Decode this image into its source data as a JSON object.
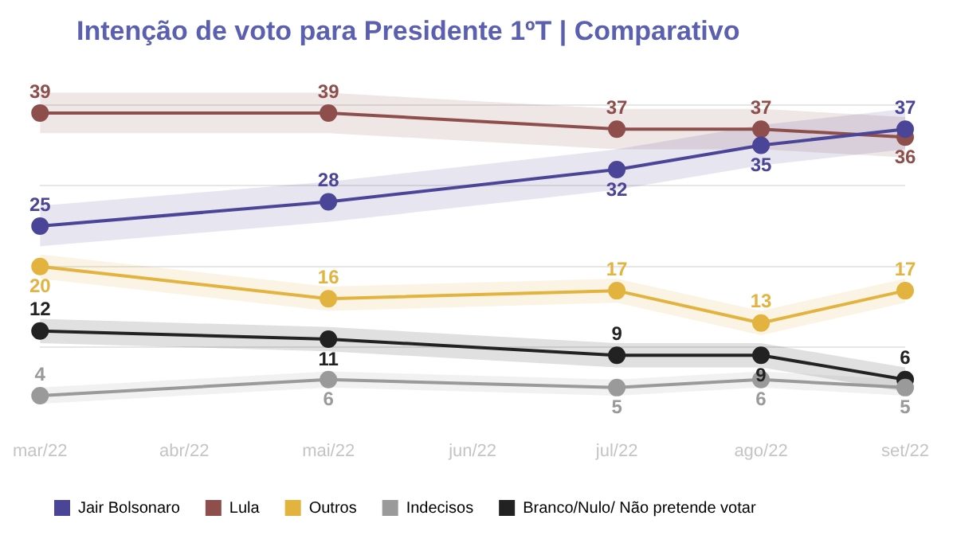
{
  "chart_data": {
    "type": "line",
    "title": "Intenção de voto para Presidente 1ºT | Comparativo",
    "categories": [
      "mar/22",
      "abr/22",
      "mai/22",
      "jun/22",
      "jul/22",
      "ago/22",
      "set/22"
    ],
    "series": [
      {
        "name": "Jair Bolsonaro",
        "color": "#4b4597",
        "values": [
          25,
          null,
          28,
          null,
          32,
          35,
          37
        ],
        "lower": [
          22.5,
          null,
          25.5,
          null,
          29.5,
          32.5,
          34.5
        ],
        "upper": [
          27.5,
          null,
          30.5,
          null,
          34.5,
          37.5,
          39.5
        ]
      },
      {
        "name": "Lula",
        "color": "#8e4f4c",
        "values": [
          39,
          null,
          39,
          null,
          37,
          37,
          36
        ],
        "lower": [
          36.5,
          null,
          36.5,
          null,
          34.5,
          34.5,
          33.5
        ],
        "upper": [
          41.5,
          null,
          41.5,
          null,
          39.5,
          39.5,
          38.5
        ]
      },
      {
        "name": "Outros",
        "color": "#e3b33f",
        "values": [
          20,
          null,
          16,
          null,
          17,
          13,
          17
        ],
        "lower": [
          18.5,
          null,
          14.5,
          null,
          15.5,
          11.5,
          15.5
        ],
        "upper": [
          21.5,
          null,
          17.5,
          null,
          18.5,
          14.5,
          18.5
        ]
      },
      {
        "name": "Indecisos",
        "color": "#9a9a9a",
        "values": [
          4,
          null,
          6,
          null,
          5,
          6,
          5
        ],
        "lower": [
          3,
          null,
          5,
          null,
          4,
          5,
          4
        ],
        "upper": [
          5,
          null,
          7,
          null,
          6,
          7,
          6
        ]
      },
      {
        "name": "Branco/Nulo/ Não pretende votar",
        "color": "#222222",
        "values": [
          12,
          null,
          11,
          null,
          9,
          9,
          6
        ],
        "lower": [
          10.5,
          null,
          9.5,
          null,
          7.5,
          7.5,
          4.5
        ],
        "upper": [
          13.5,
          null,
          12.5,
          null,
          10.5,
          10.5,
          7.5
        ]
      }
    ],
    "yticks": [
      {
        "value": 10,
        "label": null
      },
      {
        "value": 20,
        "label": null
      },
      {
        "value": 30,
        "label": null
      },
      {
        "value": 40,
        "label": null
      }
    ],
    "tick_labels": "x",
    "grid": "y",
    "legend": "bottom",
    "marker": "circle",
    "line_style": "solid",
    "data_labels": true
  }
}
